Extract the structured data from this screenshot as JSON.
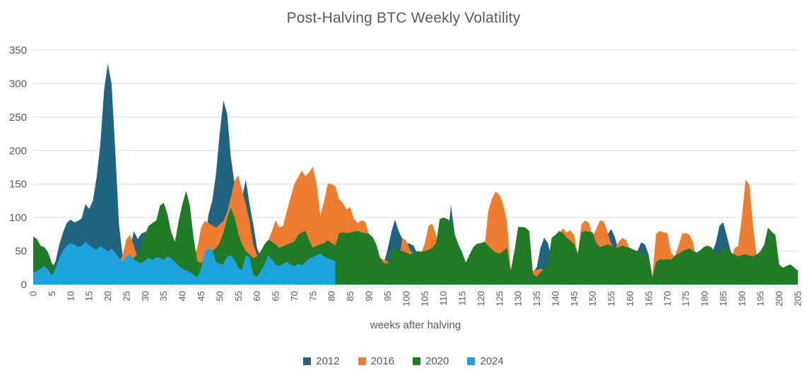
{
  "title": "Post-Halving BTC Weekly Volatility",
  "colors": {
    "text": "#595959",
    "grid": "#D9D9D9",
    "background": "#FFFFFF"
  },
  "chart_data": {
    "type": "area",
    "overlapping_series": true,
    "title": "Post-Halving BTC Weekly Volatility",
    "xlabel": "weeks after halving",
    "ylabel": "",
    "x_min": 0,
    "x_max": 205,
    "x_tick_step": 5,
    "ylim": [
      0,
      350
    ],
    "y_ticks": [
      0,
      50,
      100,
      150,
      200,
      250,
      300,
      350
    ],
    "grid": true,
    "legend_position": "bottom",
    "series": [
      {
        "name": "2012",
        "color": "#20647F",
        "values": [
          25,
          28,
          26,
          27,
          25,
          24,
          35,
          60,
          78,
          92,
          97,
          93,
          95,
          99,
          120,
          113,
          125,
          160,
          210,
          290,
          330,
          300,
          200,
          90,
          42,
          30,
          55,
          80,
          68,
          76,
          79,
          62,
          50,
          45,
          40,
          38,
          35,
          33,
          32,
          30,
          30,
          32,
          30,
          28,
          25,
          30,
          60,
          105,
          125,
          165,
          226,
          275,
          255,
          190,
          150,
          120,
          130,
          157,
          120,
          90,
          55,
          40,
          35,
          32,
          30,
          28,
          30,
          28,
          27,
          28,
          30,
          32,
          30,
          28,
          27,
          28,
          30,
          28,
          27,
          28,
          27,
          26,
          28,
          30,
          28,
          27,
          28,
          30,
          28,
          27,
          28,
          30,
          28,
          27,
          32,
          52,
          78,
          97,
          80,
          68,
          62,
          61,
          58,
          46,
          40,
          35,
          32,
          30,
          32,
          35,
          40,
          60,
          119,
          75,
          60,
          48,
          28,
          25,
          26,
          28,
          27,
          26,
          28,
          27,
          26,
          28,
          27,
          26,
          20,
          18,
          22,
          25,
          26,
          25,
          18,
          26,
          55,
          70,
          62,
          40,
          35,
          32,
          30,
          32,
          30,
          28,
          25,
          30,
          32,
          30,
          32,
          35,
          40,
          55,
          75,
          83,
          70,
          50,
          40,
          35,
          32,
          35,
          50,
          63,
          60,
          45,
          12,
          25,
          28,
          27,
          28,
          26,
          28,
          30,
          32,
          30,
          28,
          27,
          25,
          28,
          30,
          35,
          48,
          62,
          88,
          93,
          72,
          50,
          40,
          35,
          32,
          35,
          33,
          30,
          28,
          27,
          28,
          30,
          28,
          26,
          25,
          24,
          25,
          24,
          23,
          22
        ]
      },
      {
        "name": "2016",
        "color": "#ED7D31",
        "values": [
          20,
          22,
          20,
          22,
          20,
          18,
          20,
          22,
          25,
          28,
          30,
          28,
          30,
          28,
          30,
          28,
          30,
          28,
          30,
          28,
          30,
          28,
          30,
          32,
          45,
          68,
          74,
          58,
          40,
          35,
          32,
          35,
          38,
          35,
          38,
          40,
          38,
          35,
          38,
          40,
          42,
          40,
          38,
          40,
          55,
          85,
          95,
          92,
          88,
          85,
          90,
          95,
          108,
          130,
          155,
          163,
          140,
          120,
          95,
          60,
          44,
          40,
          52,
          65,
          80,
          96,
          85,
          88,
          110,
          130,
          150,
          160,
          170,
          162,
          168,
          176,
          150,
          103,
          125,
          151,
          150,
          147,
          128,
          122,
          112,
          116,
          98,
          92,
          96,
          94,
          75,
          60,
          54,
          40,
          37,
          35,
          32,
          30,
          35,
          69,
          66,
          52,
          45,
          42,
          46,
          62,
          88,
          91,
          74,
          45,
          42,
          50,
          48,
          60,
          50,
          46,
          30,
          26,
          30,
          35,
          40,
          55,
          110,
          128,
          139,
          134,
          120,
          95,
          25,
          17,
          18,
          22,
          26,
          25,
          20,
          22,
          24,
          22,
          21,
          24,
          45,
          76,
          84,
          78,
          81,
          74,
          45,
          90,
          96,
          92,
          72,
          84,
          96,
          94,
          78,
          60,
          54,
          64,
          70,
          66,
          52,
          44,
          40,
          36,
          32,
          26,
          14,
          76,
          80,
          78,
          77,
          48,
          42,
          58,
          76,
          77,
          74,
          62,
          28,
          24,
          28,
          32,
          28,
          24,
          28,
          26,
          28,
          32,
          54,
          58,
          100,
          157,
          149,
          88,
          42,
          34,
          28,
          26,
          24,
          22,
          20,
          19,
          18,
          18,
          16,
          15
        ]
      },
      {
        "name": "2020",
        "color": "#217A26",
        "values": [
          72,
          68,
          58,
          56,
          48,
          32,
          25,
          22,
          24,
          26,
          28,
          26,
          28,
          26,
          28,
          26,
          28,
          26,
          28,
          26,
          28,
          26,
          28,
          30,
          28,
          30,
          35,
          40,
          46,
          60,
          76,
          88,
          92,
          96,
          118,
          122,
          105,
          78,
          64,
          95,
          120,
          140,
          118,
          70,
          35,
          32,
          38,
          45,
          50,
          55,
          62,
          78,
          100,
          115,
          100,
          76,
          60,
          50,
          45,
          40,
          42,
          50,
          60,
          67,
          64,
          60,
          55,
          57,
          60,
          62,
          64,
          74,
          78,
          80,
          66,
          55,
          58,
          60,
          62,
          66,
          62,
          58,
          77,
          78,
          77,
          78,
          79,
          80,
          78,
          77,
          76,
          71,
          60,
          40,
          32,
          31,
          53,
          54,
          52,
          50,
          48,
          45,
          47,
          50,
          49,
          50,
          52,
          55,
          62,
          98,
          100,
          98,
          94,
          74,
          58,
          48,
          33,
          45,
          56,
          61,
          62,
          64,
          58,
          52,
          48,
          46,
          50,
          55,
          20,
          50,
          86,
          86,
          85,
          80,
          15,
          12,
          18,
          24,
          30,
          70,
          74,
          80,
          77,
          70,
          66,
          60,
          46,
          78,
          80,
          79,
          78,
          62,
          56,
          58,
          60,
          58,
          55,
          56,
          58,
          56,
          55,
          52,
          50,
          48,
          45,
          42,
          10,
          34,
          38,
          37,
          38,
          37,
          43,
          46,
          50,
          52,
          54,
          50,
          48,
          52,
          57,
          58,
          55,
          44,
          50,
          52,
          54,
          48,
          45,
          42,
          44,
          45,
          43,
          42,
          45,
          50,
          60,
          85,
          79,
          74,
          30,
          25,
          28,
          30,
          26,
          20
        ]
      },
      {
        "name": "2024",
        "color": "#1CA3DC",
        "values": [
          18,
          20,
          24,
          28,
          22,
          14,
          24,
          40,
          51,
          58,
          62,
          60,
          56,
          58,
          64,
          59,
          55,
          52,
          57,
          54,
          50,
          54,
          47,
          40,
          34,
          42,
          45,
          38,
          34,
          32,
          36,
          40,
          37,
          41,
          40,
          37,
          42,
          39,
          34,
          28,
          24,
          21,
          19,
          15,
          11,
          24,
          50,
          54,
          52,
          34,
          31,
          30,
          42,
          44,
          37,
          25,
          22,
          44,
          41,
          15,
          12,
          20,
          30,
          44,
          37,
          30,
          28,
          31,
          34,
          30,
          28,
          31,
          29,
          34,
          39,
          41,
          44,
          46,
          42,
          39,
          37,
          35
        ]
      }
    ]
  }
}
